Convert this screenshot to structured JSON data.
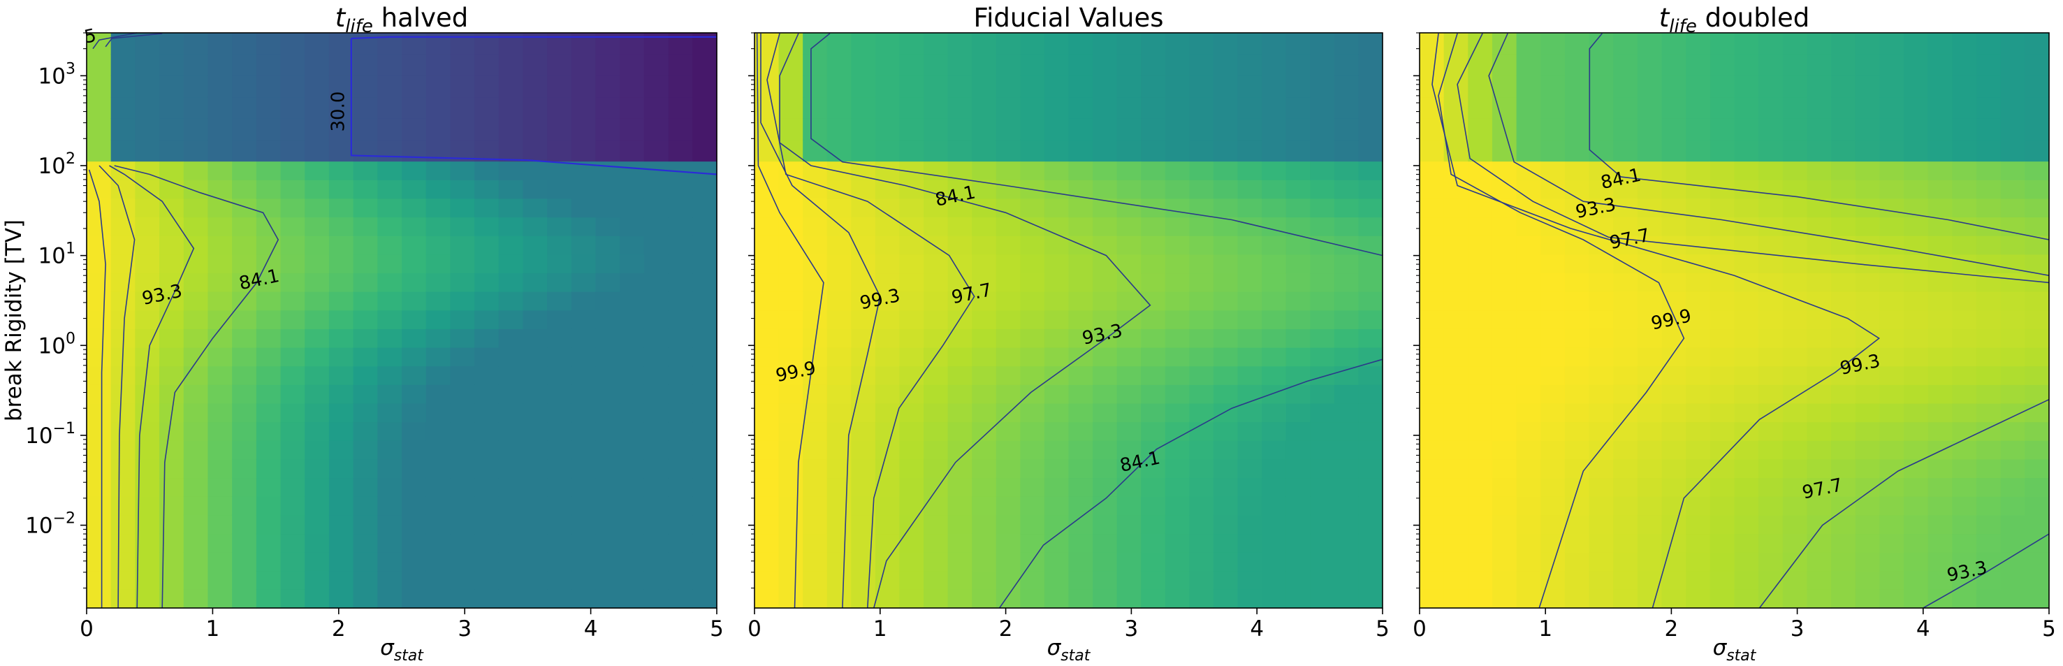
{
  "figure": {
    "shared_ylabel": "break Rigidity [TV]",
    "x_ticks": [
      "0",
      "1",
      "2",
      "3",
      "4",
      "5"
    ],
    "y_ticks": [
      {
        "base": "10",
        "exp": "−2"
      },
      {
        "base": "10",
        "exp": "−1"
      },
      {
        "base": "10",
        "exp": "0"
      },
      {
        "base": "10",
        "exp": "1"
      },
      {
        "base": "10",
        "exp": "2"
      },
      {
        "base": "10",
        "exp": "3"
      }
    ]
  },
  "chart_data": [
    {
      "type": "heatmap",
      "title": {
        "symbol": "t",
        "subscript": "life",
        "text": " halved"
      },
      "xlabel": {
        "symbol": "σ",
        "subscript": "stat"
      },
      "ylabel": "break Rigidity [TV]",
      "xlim": [
        0,
        5
      ],
      "ylim": [
        0.0012,
        3000
      ],
      "yscale": "log",
      "colormap": "viridis",
      "contour_levels": [
        "30.0",
        "84.1",
        "93.3",
        "5"
      ],
      "contour_label_positions": [
        {
          "text": "30.0",
          "x": 2.0,
          "y": 400
        },
        {
          "text": "84.1",
          "x": 1.37,
          "y": 5.3
        },
        {
          "text": "93.3",
          "x": 0.6,
          "y": 3.6
        },
        {
          "text": "5",
          "x": 0.03,
          "y": 2700
        }
      ]
    },
    {
      "type": "heatmap",
      "title": {
        "symbol": "",
        "subscript": "",
        "text": "Fiducial Values"
      },
      "xlabel": {
        "symbol": "σ",
        "subscript": "stat"
      },
      "ylabel": "",
      "xlim": [
        0,
        5
      ],
      "ylim": [
        0.0012,
        3000
      ],
      "yscale": "log",
      "colormap": "viridis",
      "contour_levels": [
        "84.1",
        "93.3",
        "97.7",
        "99.3",
        "99.9"
      ],
      "contour_label_positions": [
        {
          "text": "84.1",
          "x": 1.6,
          "y": 45
        },
        {
          "text": "99.3",
          "x": 1.0,
          "y": 3.2
        },
        {
          "text": "97.7",
          "x": 1.73,
          "y": 3.7
        },
        {
          "text": "93.3",
          "x": 2.77,
          "y": 1.3
        },
        {
          "text": "99.9",
          "x": 0.33,
          "y": 0.5
        },
        {
          "text": "84.1",
          "x": 3.07,
          "y": 0.05
        }
      ]
    },
    {
      "type": "heatmap",
      "title": {
        "symbol": "t",
        "subscript": "life",
        "text": " doubled"
      },
      "xlabel": {
        "symbol": "σ",
        "subscript": "stat"
      },
      "ylabel": "",
      "xlim": [
        0,
        5
      ],
      "ylim": [
        0.0012,
        3000
      ],
      "yscale": "log",
      "colormap": "viridis",
      "contour_levels": [
        "84.1",
        "93.3",
        "97.7",
        "99.9",
        "99.3",
        "97.7",
        "93.3"
      ],
      "contour_label_positions": [
        {
          "text": "84.1",
          "x": 1.6,
          "y": 70
        },
        {
          "text": "93.3",
          "x": 1.4,
          "y": 33
        },
        {
          "text": "97.7",
          "x": 1.67,
          "y": 15
        },
        {
          "text": "99.9",
          "x": 2.0,
          "y": 1.9
        },
        {
          "text": "99.3",
          "x": 3.5,
          "y": 0.6
        },
        {
          "text": "97.7",
          "x": 3.2,
          "y": 0.025
        },
        {
          "text": "93.3",
          "x": 4.35,
          "y": 0.003
        }
      ]
    }
  ]
}
